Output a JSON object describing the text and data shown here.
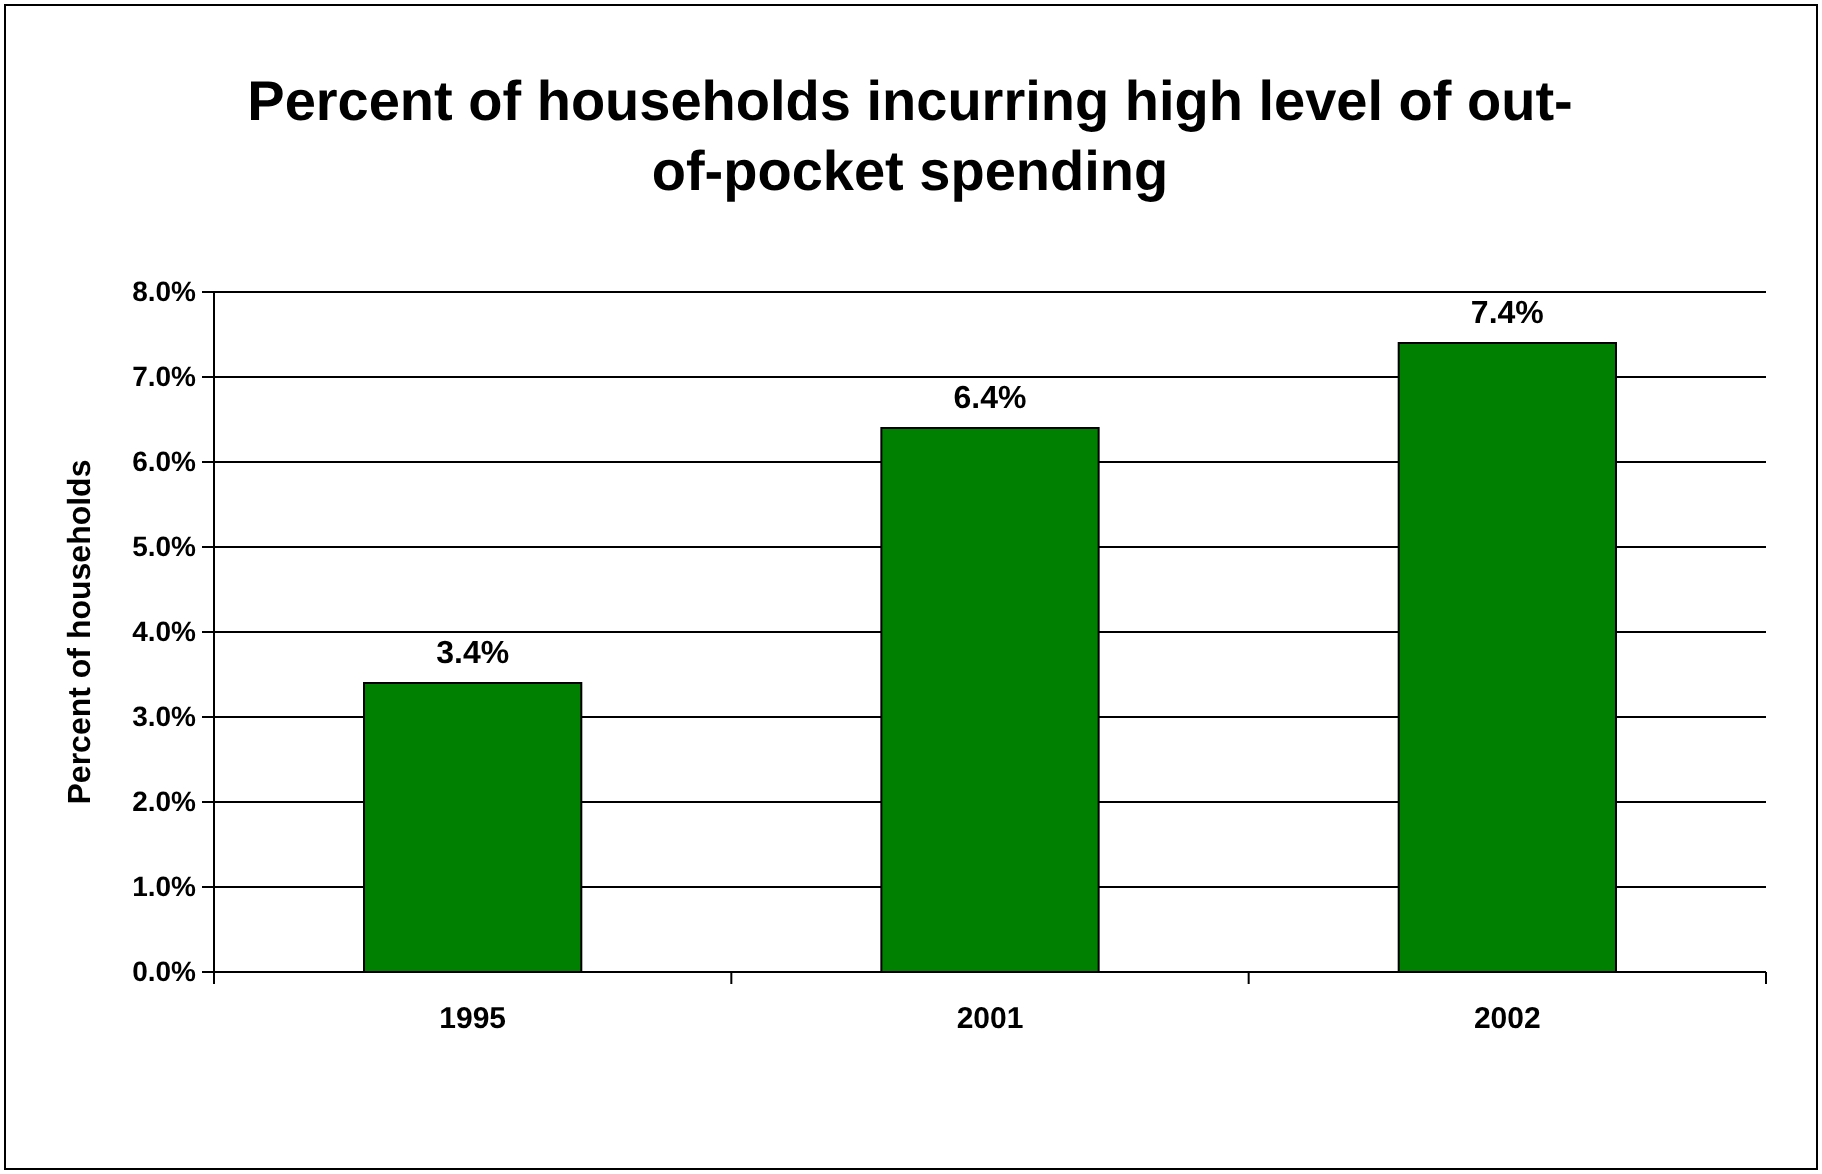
{
  "chart_data": {
    "type": "bar",
    "title": "Percent of households incurring high level of out-of-pocket spending",
    "ylabel": "Percent of households",
    "categories": [
      "1995",
      "2001",
      "2002"
    ],
    "series": [
      {
        "color": "#008000",
        "values": [
          3.4,
          6.4,
          7.4
        ],
        "value_labels": [
          "3.4%",
          "6.4%",
          "7.4%"
        ]
      }
    ],
    "ylim": [
      0,
      8
    ],
    "yticks": [
      {
        "value": 0,
        "label": "0.0%"
      },
      {
        "value": 1,
        "label": "1.0%"
      },
      {
        "value": 2,
        "label": "2.0%"
      },
      {
        "value": 3,
        "label": "3.0%"
      },
      {
        "value": 4,
        "label": "4.0%"
      },
      {
        "value": 5,
        "label": "5.0%"
      },
      {
        "value": 6,
        "label": "6.0%"
      },
      {
        "value": 7,
        "label": "7.0%"
      },
      {
        "value": 8,
        "label": "8.0%"
      }
    ],
    "grid": "y"
  }
}
